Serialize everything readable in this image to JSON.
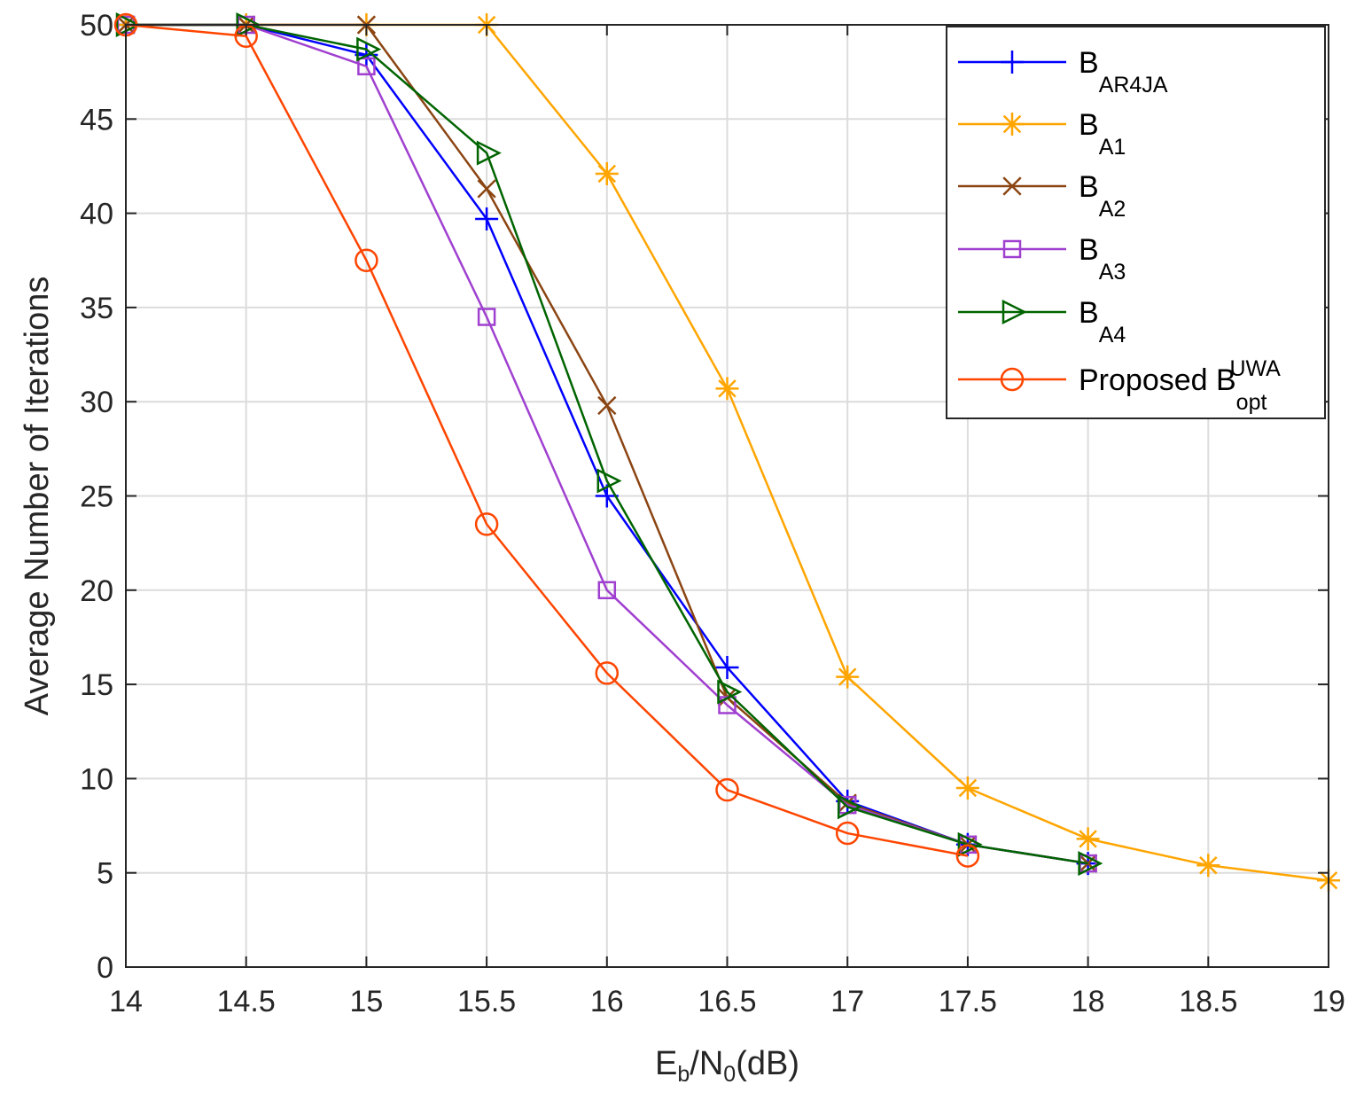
{
  "chart_data": {
    "type": "line",
    "title": "",
    "xlabel": {
      "main": "E",
      "sub": "b",
      "mid": "/N",
      "sub2": "0",
      "tail": "(dB)"
    },
    "ylabel": "Average Number of Iterations",
    "xlim": [
      14,
      19
    ],
    "ylim": [
      0,
      50
    ],
    "xticks": [
      14,
      14.5,
      15,
      15.5,
      16,
      16.5,
      17,
      17.5,
      18,
      18.5,
      19
    ],
    "xtick_labels": [
      "14",
      "14.5",
      "15",
      "15.5",
      "16",
      "16.5",
      "17",
      "17.5",
      "18",
      "18.5",
      "19"
    ],
    "yticks": [
      0,
      5,
      10,
      15,
      20,
      25,
      30,
      35,
      40,
      45,
      50
    ],
    "ytick_labels": [
      "0",
      "5",
      "10",
      "15",
      "20",
      "25",
      "30",
      "35",
      "40",
      "45",
      "50"
    ],
    "grid": true,
    "legend_position": "top-right",
    "series": [
      {
        "name": "B_AR4JA",
        "label_main": "B",
        "label_sub": "AR4JA",
        "label_sup": "",
        "color": "#0000ff",
        "marker": "plus",
        "x": [
          14,
          14.5,
          15,
          15.5,
          16,
          16.5,
          17,
          17.5,
          18
        ],
        "y": [
          50,
          50,
          48.4,
          39.7,
          25,
          15.9,
          8.8,
          6.5,
          5.5
        ]
      },
      {
        "name": "B_A1",
        "label_main": "B",
        "label_sub": "A1",
        "label_sup": "",
        "color": "#ffa500",
        "marker": "asterisk",
        "x": [
          14,
          14.5,
          15,
          15.5,
          16,
          16.5,
          17,
          17.5,
          18,
          18.5,
          19
        ],
        "y": [
          50,
          50,
          50,
          50,
          42.1,
          30.7,
          15.4,
          9.5,
          6.8,
          5.4,
          4.6
        ]
      },
      {
        "name": "B_A2",
        "label_main": "B",
        "label_sub": "A2",
        "label_sup": "",
        "color": "#8b4513",
        "marker": "x",
        "x": [
          14,
          14.5,
          15,
          15.5,
          16,
          16.5,
          17,
          17.5,
          18
        ],
        "y": [
          50,
          50,
          50,
          41.3,
          29.8,
          14.3,
          8.7,
          6.5,
          5.5
        ]
      },
      {
        "name": "B_A3",
        "label_main": "B",
        "label_sub": "A3",
        "label_sup": "",
        "color": "#a040d0",
        "marker": "square",
        "x": [
          14,
          14.5,
          15,
          15.5,
          16,
          16.5,
          17,
          17.5,
          18
        ],
        "y": [
          50,
          50,
          47.8,
          34.5,
          20,
          13.9,
          8.6,
          6.5,
          5.5
        ]
      },
      {
        "name": "B_A4",
        "label_main": "B",
        "label_sub": "A4",
        "label_sup": "",
        "color": "#006400",
        "marker": "triangle-right",
        "x": [
          14,
          14.5,
          15,
          15.5,
          16,
          16.5,
          17,
          17.5,
          18
        ],
        "y": [
          50,
          50,
          48.7,
          43.2,
          25.8,
          14.6,
          8.5,
          6.5,
          5.5
        ]
      },
      {
        "name": "Proposed B_opt^UWA",
        "label_main": "Proposed B",
        "label_sub": "opt",
        "label_sup": "UWA",
        "color": "#ff4500",
        "marker": "circle",
        "x": [
          14,
          14.5,
          15,
          15.5,
          16,
          16.5,
          17,
          17.5
        ],
        "y": [
          50,
          49.4,
          37.5,
          23.5,
          15.6,
          9.4,
          7.1,
          5.9
        ]
      }
    ]
  }
}
